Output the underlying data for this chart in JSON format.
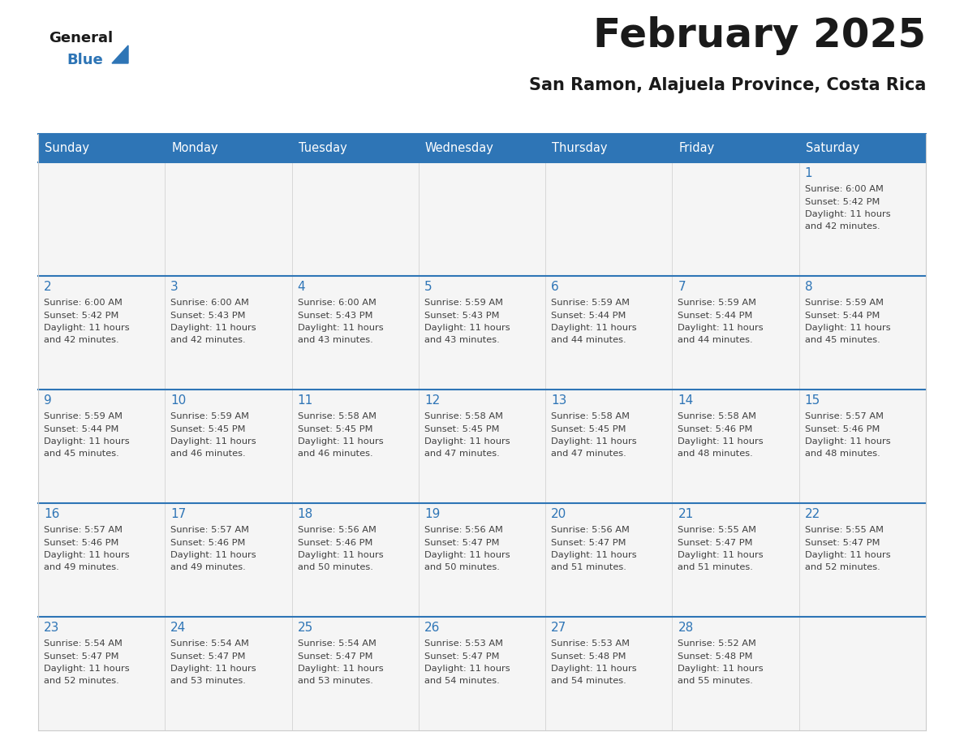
{
  "title": "February 2025",
  "subtitle": "San Ramon, Alajuela Province, Costa Rica",
  "days_of_week": [
    "Sunday",
    "Monday",
    "Tuesday",
    "Wednesday",
    "Thursday",
    "Friday",
    "Saturday"
  ],
  "header_bg": "#2E75B6",
  "header_text_color": "#FFFFFF",
  "cell_bg": "#F5F5F5",
  "cell_border_color": "#2E75B6",
  "cell_divider_color": "#CCCCCC",
  "day_number_color": "#2E75B6",
  "info_text_color": "#404040",
  "title_color": "#1a1a1a",
  "subtitle_color": "#1a1a1a",
  "logo_general_color": "#1a1a1a",
  "logo_blue_color": "#2E75B6",
  "logo_triangle_color": "#2E75B6",
  "calendar_data": [
    [
      null,
      null,
      null,
      null,
      null,
      null,
      {
        "day": 1,
        "sunrise": "6:00 AM",
        "sunset": "5:42 PM",
        "daylight": "11 hours and 42 minutes."
      }
    ],
    [
      {
        "day": 2,
        "sunrise": "6:00 AM",
        "sunset": "5:42 PM",
        "daylight": "11 hours and 42 minutes."
      },
      {
        "day": 3,
        "sunrise": "6:00 AM",
        "sunset": "5:43 PM",
        "daylight": "11 hours and 42 minutes."
      },
      {
        "day": 4,
        "sunrise": "6:00 AM",
        "sunset": "5:43 PM",
        "daylight": "11 hours and 43 minutes."
      },
      {
        "day": 5,
        "sunrise": "5:59 AM",
        "sunset": "5:43 PM",
        "daylight": "11 hours and 43 minutes."
      },
      {
        "day": 6,
        "sunrise": "5:59 AM",
        "sunset": "5:44 PM",
        "daylight": "11 hours and 44 minutes."
      },
      {
        "day": 7,
        "sunrise": "5:59 AM",
        "sunset": "5:44 PM",
        "daylight": "11 hours and 44 minutes."
      },
      {
        "day": 8,
        "sunrise": "5:59 AM",
        "sunset": "5:44 PM",
        "daylight": "11 hours and 45 minutes."
      }
    ],
    [
      {
        "day": 9,
        "sunrise": "5:59 AM",
        "sunset": "5:44 PM",
        "daylight": "11 hours and 45 minutes."
      },
      {
        "day": 10,
        "sunrise": "5:59 AM",
        "sunset": "5:45 PM",
        "daylight": "11 hours and 46 minutes."
      },
      {
        "day": 11,
        "sunrise": "5:58 AM",
        "sunset": "5:45 PM",
        "daylight": "11 hours and 46 minutes."
      },
      {
        "day": 12,
        "sunrise": "5:58 AM",
        "sunset": "5:45 PM",
        "daylight": "11 hours and 47 minutes."
      },
      {
        "day": 13,
        "sunrise": "5:58 AM",
        "sunset": "5:45 PM",
        "daylight": "11 hours and 47 minutes."
      },
      {
        "day": 14,
        "sunrise": "5:58 AM",
        "sunset": "5:46 PM",
        "daylight": "11 hours and 48 minutes."
      },
      {
        "day": 15,
        "sunrise": "5:57 AM",
        "sunset": "5:46 PM",
        "daylight": "11 hours and 48 minutes."
      }
    ],
    [
      {
        "day": 16,
        "sunrise": "5:57 AM",
        "sunset": "5:46 PM",
        "daylight": "11 hours and 49 minutes."
      },
      {
        "day": 17,
        "sunrise": "5:57 AM",
        "sunset": "5:46 PM",
        "daylight": "11 hours and 49 minutes."
      },
      {
        "day": 18,
        "sunrise": "5:56 AM",
        "sunset": "5:46 PM",
        "daylight": "11 hours and 50 minutes."
      },
      {
        "day": 19,
        "sunrise": "5:56 AM",
        "sunset": "5:47 PM",
        "daylight": "11 hours and 50 minutes."
      },
      {
        "day": 20,
        "sunrise": "5:56 AM",
        "sunset": "5:47 PM",
        "daylight": "11 hours and 51 minutes."
      },
      {
        "day": 21,
        "sunrise": "5:55 AM",
        "sunset": "5:47 PM",
        "daylight": "11 hours and 51 minutes."
      },
      {
        "day": 22,
        "sunrise": "5:55 AM",
        "sunset": "5:47 PM",
        "daylight": "11 hours and 52 minutes."
      }
    ],
    [
      {
        "day": 23,
        "sunrise": "5:54 AM",
        "sunset": "5:47 PM",
        "daylight": "11 hours and 52 minutes."
      },
      {
        "day": 24,
        "sunrise": "5:54 AM",
        "sunset": "5:47 PM",
        "daylight": "11 hours and 53 minutes."
      },
      {
        "day": 25,
        "sunrise": "5:54 AM",
        "sunset": "5:47 PM",
        "daylight": "11 hours and 53 minutes."
      },
      {
        "day": 26,
        "sunrise": "5:53 AM",
        "sunset": "5:47 PM",
        "daylight": "11 hours and 54 minutes."
      },
      {
        "day": 27,
        "sunrise": "5:53 AM",
        "sunset": "5:48 PM",
        "daylight": "11 hours and 54 minutes."
      },
      {
        "day": 28,
        "sunrise": "5:52 AM",
        "sunset": "5:48 PM",
        "daylight": "11 hours and 55 minutes."
      },
      null
    ]
  ]
}
